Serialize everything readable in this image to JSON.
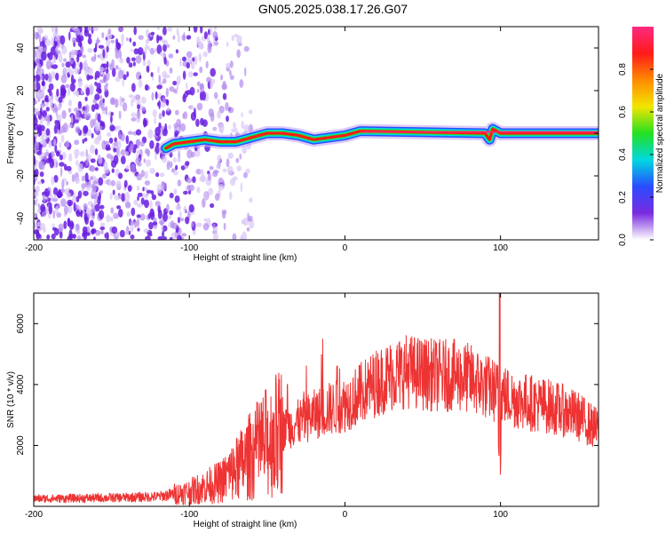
{
  "title": "GN05.2025.038.17.26.G07",
  "chart_data": [
    {
      "type": "heatmap",
      "xlabel": "Height of straight line (km)",
      "ylabel": "Frequency (Hz)",
      "xlim": [
        -200,
        163
      ],
      "ylim": [
        -50,
        50
      ],
      "xticks": [
        -200,
        -100,
        0,
        100
      ],
      "yticks": [
        -40,
        -20,
        0,
        20,
        40
      ],
      "colorbar": {
        "label": "Normalized spectral amplitude",
        "range": [
          0,
          1
        ],
        "ticks": [
          "0.0",
          "0.2",
          "0.4",
          "0.6",
          "0.8"
        ],
        "colors": [
          "#ffffff",
          "#7a2be0",
          "#2a4cff",
          "#00d8e0",
          "#24e020",
          "#f2e600",
          "#ff8a00",
          "#ff1a1a",
          "#ff2a80"
        ]
      },
      "ridge": {
        "x": [
          -115,
          -110,
          -100,
          -90,
          -80,
          -70,
          -60,
          -50,
          -40,
          -30,
          -20,
          -10,
          0,
          10,
          90,
          93,
          95,
          100,
          163
        ],
        "y": [
          -7,
          -5,
          -4,
          -3,
          -4,
          -4,
          -2,
          0,
          0,
          -1,
          -3,
          -2,
          -1,
          1,
          0,
          -3,
          2,
          0,
          0
        ]
      },
      "noise_region_x": [
        -200,
        -70
      ]
    },
    {
      "type": "line",
      "xlabel": "Height of straight line (km)",
      "ylabel": "SNR (10 * v/v)",
      "xlim": [
        -200,
        163
      ],
      "ylim": [
        0,
        7000
      ],
      "xticks": [
        -200,
        -100,
        0,
        100
      ],
      "yticks": [
        2000,
        4000,
        6000
      ],
      "color": "#ee3333",
      "envelope": {
        "x": [
          -200,
          -150,
          -120,
          -100,
          -80,
          -70,
          -60,
          -50,
          -40,
          -30,
          -20,
          -10,
          0,
          10,
          20,
          30,
          40,
          50,
          60,
          70,
          80,
          90,
          100,
          110,
          120,
          130,
          140,
          150,
          163
        ],
        "y": [
          250,
          280,
          320,
          480,
          800,
          1200,
          1700,
          2100,
          2500,
          2750,
          3000,
          3200,
          3350,
          3700,
          4050,
          4300,
          4450,
          4350,
          4300,
          4300,
          4200,
          3950,
          3700,
          3500,
          3400,
          3300,
          3150,
          2950,
          2500
        ]
      },
      "spikes": [
        {
          "x": -37,
          "y": 4000
        },
        {
          "x": -5,
          "y": 4600
        },
        {
          "x": 99.5,
          "y": 7000
        }
      ]
    }
  ]
}
